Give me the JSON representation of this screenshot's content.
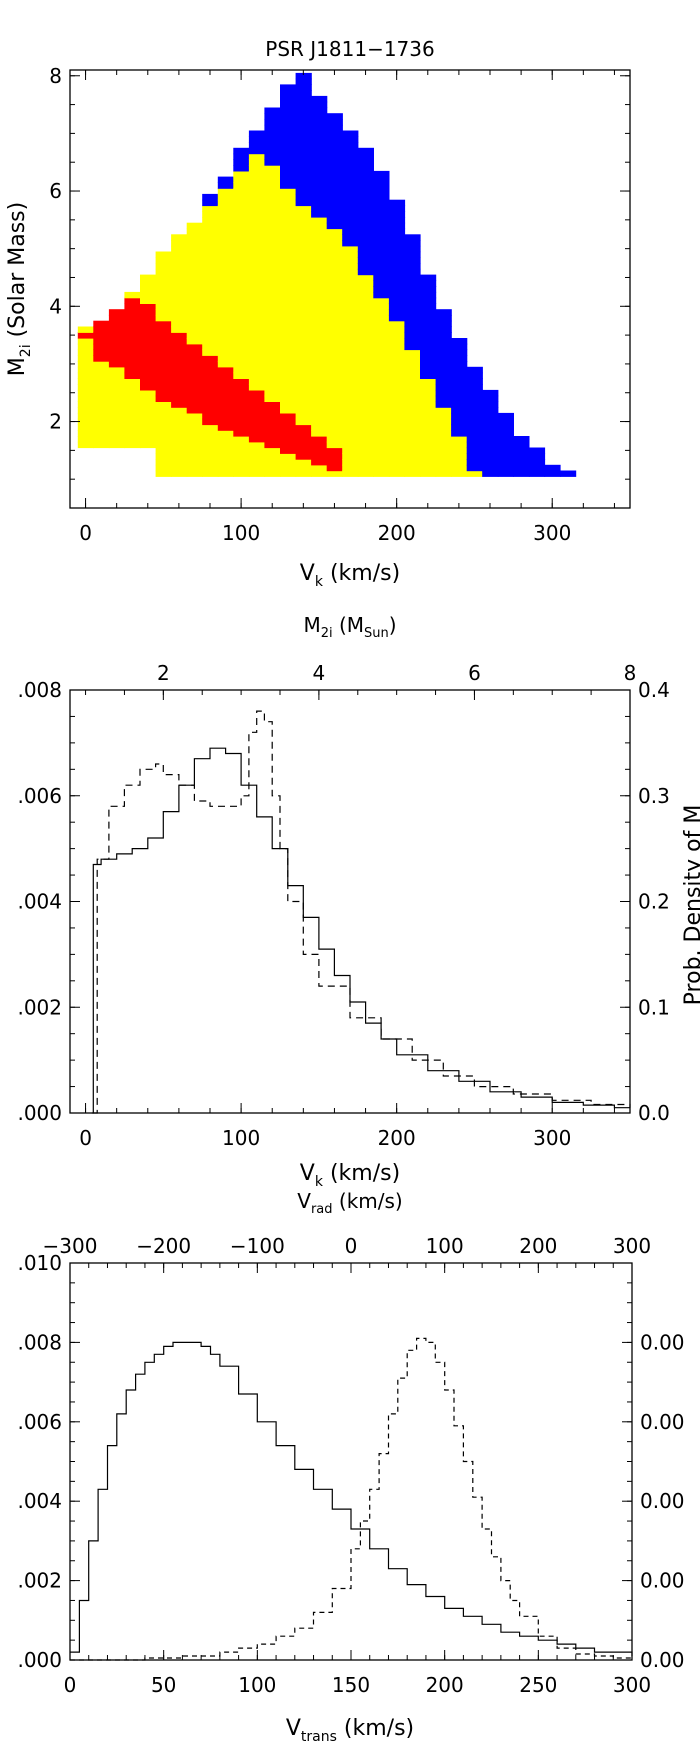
{
  "chart_data": [
    {
      "type": "heatmap",
      "title": "PSR J1811−1736",
      "xlabel": {
        "base": "V",
        "sub": "k",
        "tail": " (km/s)"
      },
      "ylabel": {
        "base": "M",
        "sub": "2i",
        "tail": " (Solar Mass)"
      },
      "xlim": [
        -10,
        350
      ],
      "ylim": [
        0.5,
        8.1
      ],
      "xticks": [
        0,
        100,
        200,
        300
      ],
      "yticks": [
        2,
        4,
        6,
        8
      ],
      "cell_dv": 10,
      "cell_dm": 0.1,
      "colors": {
        "red": "#ff0000",
        "yellow": "#ffff00",
        "blue": "#0000ff"
      },
      "regions": [
        {
          "color": "red",
          "boundary_low": [
            [
              0,
              3.5
            ],
            [
              10,
              3.1
            ],
            [
              20,
              3.0
            ],
            [
              30,
              2.8
            ],
            [
              40,
              2.6
            ],
            [
              50,
              2.4
            ],
            [
              60,
              2.3
            ],
            [
              70,
              2.2
            ],
            [
              80,
              2.0
            ],
            [
              90,
              1.9
            ],
            [
              100,
              1.8
            ],
            [
              110,
              1.7
            ],
            [
              120,
              1.6
            ],
            [
              130,
              1.5
            ],
            [
              140,
              1.4
            ],
            [
              150,
              1.3
            ],
            [
              160,
              1.2
            ],
            [
              170,
              1.1
            ]
          ],
          "boundary_high": [
            [
              0,
              3.6
            ],
            [
              10,
              3.8
            ],
            [
              20,
              4.0
            ],
            [
              30,
              4.2
            ],
            [
              40,
              4.1
            ],
            [
              50,
              3.8
            ],
            [
              60,
              3.6
            ],
            [
              70,
              3.4
            ],
            [
              80,
              3.2
            ],
            [
              90,
              3.0
            ],
            [
              100,
              2.8
            ],
            [
              110,
              2.6
            ],
            [
              120,
              2.4
            ],
            [
              130,
              2.2
            ],
            [
              140,
              2.0
            ],
            [
              150,
              1.8
            ],
            [
              160,
              1.6
            ],
            [
              170,
              1.1
            ]
          ]
        },
        {
          "color": "yellow",
          "boundary_high": [
            [
              0,
              3.7
            ],
            [
              10,
              3.8
            ],
            [
              20,
              4.0
            ],
            [
              30,
              4.3
            ],
            [
              40,
              4.6
            ],
            [
              50,
              4.9
            ],
            [
              60,
              5.2
            ],
            [
              70,
              5.4
            ],
            [
              80,
              5.7
            ],
            [
              90,
              6.0
            ],
            [
              100,
              6.3
            ],
            [
              110,
              6.6
            ],
            [
              120,
              6.4
            ],
            [
              130,
              6.0
            ],
            [
              140,
              5.7
            ],
            [
              150,
              5.5
            ],
            [
              160,
              5.3
            ],
            [
              170,
              5.0
            ],
            [
              180,
              4.6
            ],
            [
              190,
              4.2
            ],
            [
              200,
              3.8
            ],
            [
              210,
              3.3
            ],
            [
              220,
              2.8
            ],
            [
              230,
              2.3
            ],
            [
              240,
              1.8
            ],
            [
              250,
              1.1
            ]
          ]
        },
        {
          "color": "blue",
          "boundary_high": [
            [
              80,
              5.9
            ],
            [
              90,
              6.2
            ],
            [
              100,
              6.7
            ],
            [
              110,
              7.0
            ],
            [
              120,
              7.4
            ],
            [
              130,
              7.8
            ],
            [
              140,
              8.0
            ],
            [
              150,
              7.6
            ],
            [
              160,
              7.3
            ],
            [
              170,
              7.0
            ],
            [
              180,
              6.7
            ],
            [
              190,
              6.3
            ],
            [
              200,
              5.8
            ],
            [
              210,
              5.2
            ],
            [
              220,
              4.6
            ],
            [
              230,
              4.0
            ],
            [
              240,
              3.5
            ],
            [
              250,
              3.0
            ],
            [
              260,
              2.6
            ],
            [
              270,
              2.2
            ],
            [
              280,
              1.8
            ],
            [
              290,
              1.6
            ],
            [
              300,
              1.3
            ],
            [
              310,
              1.1
            ]
          ]
        }
      ]
    },
    {
      "type": "line",
      "xlabel": {
        "base": "V",
        "sub": "k",
        "tail": " (km/s)"
      },
      "top_xlabel": {
        "base": "M",
        "sub": "2i",
        "tail": " (M",
        "sub2": "Sun",
        "tail2": ")"
      },
      "right_ylabel": "Prob. Density of M",
      "xlim": [
        -10,
        350
      ],
      "ylim": [
        0,
        0.008
      ],
      "xticks": [
        0,
        100,
        200,
        300
      ],
      "yticks": [
        0,
        0.002,
        0.004,
        0.006,
        0.008
      ],
      "ytick_labels": [
        ".000",
        ".002",
        ".004",
        ".006",
        ".008"
      ],
      "top_xlim": [
        0.8,
        8
      ],
      "top_xticks": [
        2,
        4,
        6,
        8
      ],
      "right_ylim": [
        0,
        0.4
      ],
      "right_yticks": [
        0.0,
        0.1,
        0.2,
        0.3,
        0.4
      ],
      "right_ytick_labels": [
        "0.0",
        "0.1",
        "0.2",
        "0.3",
        "0.4"
      ],
      "series": [
        {
          "style": "solid",
          "axis": "bottom-left",
          "x": [
            4,
            5,
            10,
            20,
            30,
            40,
            50,
            60,
            70,
            80,
            90,
            100,
            110,
            120,
            130,
            140,
            150,
            160,
            170,
            180,
            190,
            200,
            220,
            240,
            260,
            280,
            300,
            320,
            340,
            350
          ],
          "y": [
            0,
            0.0047,
            0.0048,
            0.0049,
            0.005,
            0.0052,
            0.0057,
            0.0062,
            0.0067,
            0.0069,
            0.0068,
            0.0062,
            0.0056,
            0.005,
            0.0043,
            0.0037,
            0.0031,
            0.0026,
            0.0021,
            0.0017,
            0.0014,
            0.0011,
            0.0008,
            0.0006,
            0.0004,
            0.0003,
            0.0002,
            0.00015,
            0.0001,
            0.0001
          ]
        },
        {
          "style": "dashed",
          "axis": "top-right",
          "x": [
            1.1,
            1.15,
            1.3,
            1.5,
            1.7,
            1.9,
            2.0,
            2.2,
            2.4,
            2.6,
            2.8,
            3.0,
            3.1,
            3.2,
            3.3,
            3.4,
            3.5,
            3.6,
            3.8,
            4.0,
            4.4,
            4.8,
            5.2,
            5.6,
            6.0,
            6.5,
            7.0,
            7.5,
            8.0
          ],
          "y": [
            0,
            0.24,
            0.29,
            0.31,
            0.325,
            0.33,
            0.32,
            0.31,
            0.295,
            0.29,
            0.29,
            0.3,
            0.36,
            0.38,
            0.37,
            0.3,
            0.25,
            0.2,
            0.15,
            0.12,
            0.09,
            0.07,
            0.05,
            0.035,
            0.025,
            0.018,
            0.012,
            0.008,
            0.005
          ]
        }
      ]
    },
    {
      "type": "line",
      "xlabel": {
        "base": "V",
        "sub": "trans",
        "tail": " (km/s)"
      },
      "top_xlabel": {
        "base": "V",
        "sub": "rad",
        "tail": " (km/s)"
      },
      "xlim": [
        0,
        300
      ],
      "ylim": [
        0,
        0.01
      ],
      "xticks": [
        0,
        50,
        100,
        150,
        200,
        250,
        300
      ],
      "yticks": [
        0,
        0.002,
        0.004,
        0.006,
        0.008,
        0.01
      ],
      "ytick_labels": [
        ".000",
        ".002",
        ".004",
        ".006",
        ".008",
        ".010"
      ],
      "top_xlim": [
        -300,
        300
      ],
      "top_xticks": [
        -300,
        -200,
        -100,
        0,
        100,
        200,
        300
      ],
      "top_xtick_labels": [
        "−300",
        "−200",
        "−100",
        "0",
        "100",
        "200",
        "300"
      ],
      "right_yticks": [
        0,
        0.002,
        0.004,
        0.006,
        0.008
      ],
      "right_ytick_labels": [
        "0.00",
        "0.00",
        "0.00",
        "0.00",
        "0.00"
      ],
      "series": [
        {
          "style": "solid",
          "axis": "bottom-left",
          "x": [
            0,
            5,
            10,
            15,
            20,
            25,
            30,
            35,
            40,
            45,
            50,
            55,
            60,
            65,
            70,
            75,
            80,
            90,
            100,
            110,
            120,
            130,
            140,
            150,
            160,
            170,
            180,
            190,
            200,
            210,
            220,
            230,
            240,
            250,
            260,
            270,
            280,
            290,
            300
          ],
          "y": [
            0.0002,
            0.0015,
            0.003,
            0.0043,
            0.0054,
            0.0062,
            0.0068,
            0.0072,
            0.0075,
            0.0077,
            0.0079,
            0.008,
            0.008,
            0.008,
            0.0079,
            0.0077,
            0.0074,
            0.0067,
            0.006,
            0.0054,
            0.0048,
            0.0043,
            0.0038,
            0.0033,
            0.0028,
            0.0023,
            0.0019,
            0.0016,
            0.0013,
            0.0011,
            0.0009,
            0.0007,
            0.0006,
            0.0005,
            0.0004,
            0.0003,
            0.0002,
            0.0002,
            0.0001
          ]
        },
        {
          "style": "dashed",
          "axis": "bottom-left",
          "x": [
            0,
            20,
            40,
            60,
            80,
            90,
            100,
            110,
            120,
            130,
            140,
            150,
            155,
            160,
            165,
            170,
            175,
            180,
            185,
            190,
            195,
            200,
            205,
            210,
            215,
            220,
            225,
            230,
            235,
            240,
            250,
            260,
            270,
            280,
            290,
            300
          ],
          "y": [
            0,
            0,
            5e-05,
            0.0001,
            0.0002,
            0.0003,
            0.0004,
            0.0006,
            0.0008,
            0.0012,
            0.0018,
            0.0028,
            0.0035,
            0.0043,
            0.0052,
            0.0062,
            0.0071,
            0.0078,
            0.0081,
            0.008,
            0.0075,
            0.0068,
            0.0059,
            0.005,
            0.0041,
            0.0033,
            0.0026,
            0.002,
            0.0015,
            0.0011,
            0.0006,
            0.0003,
            0.00015,
            0.0001,
            5e-05,
            2e-05
          ]
        }
      ]
    }
  ]
}
